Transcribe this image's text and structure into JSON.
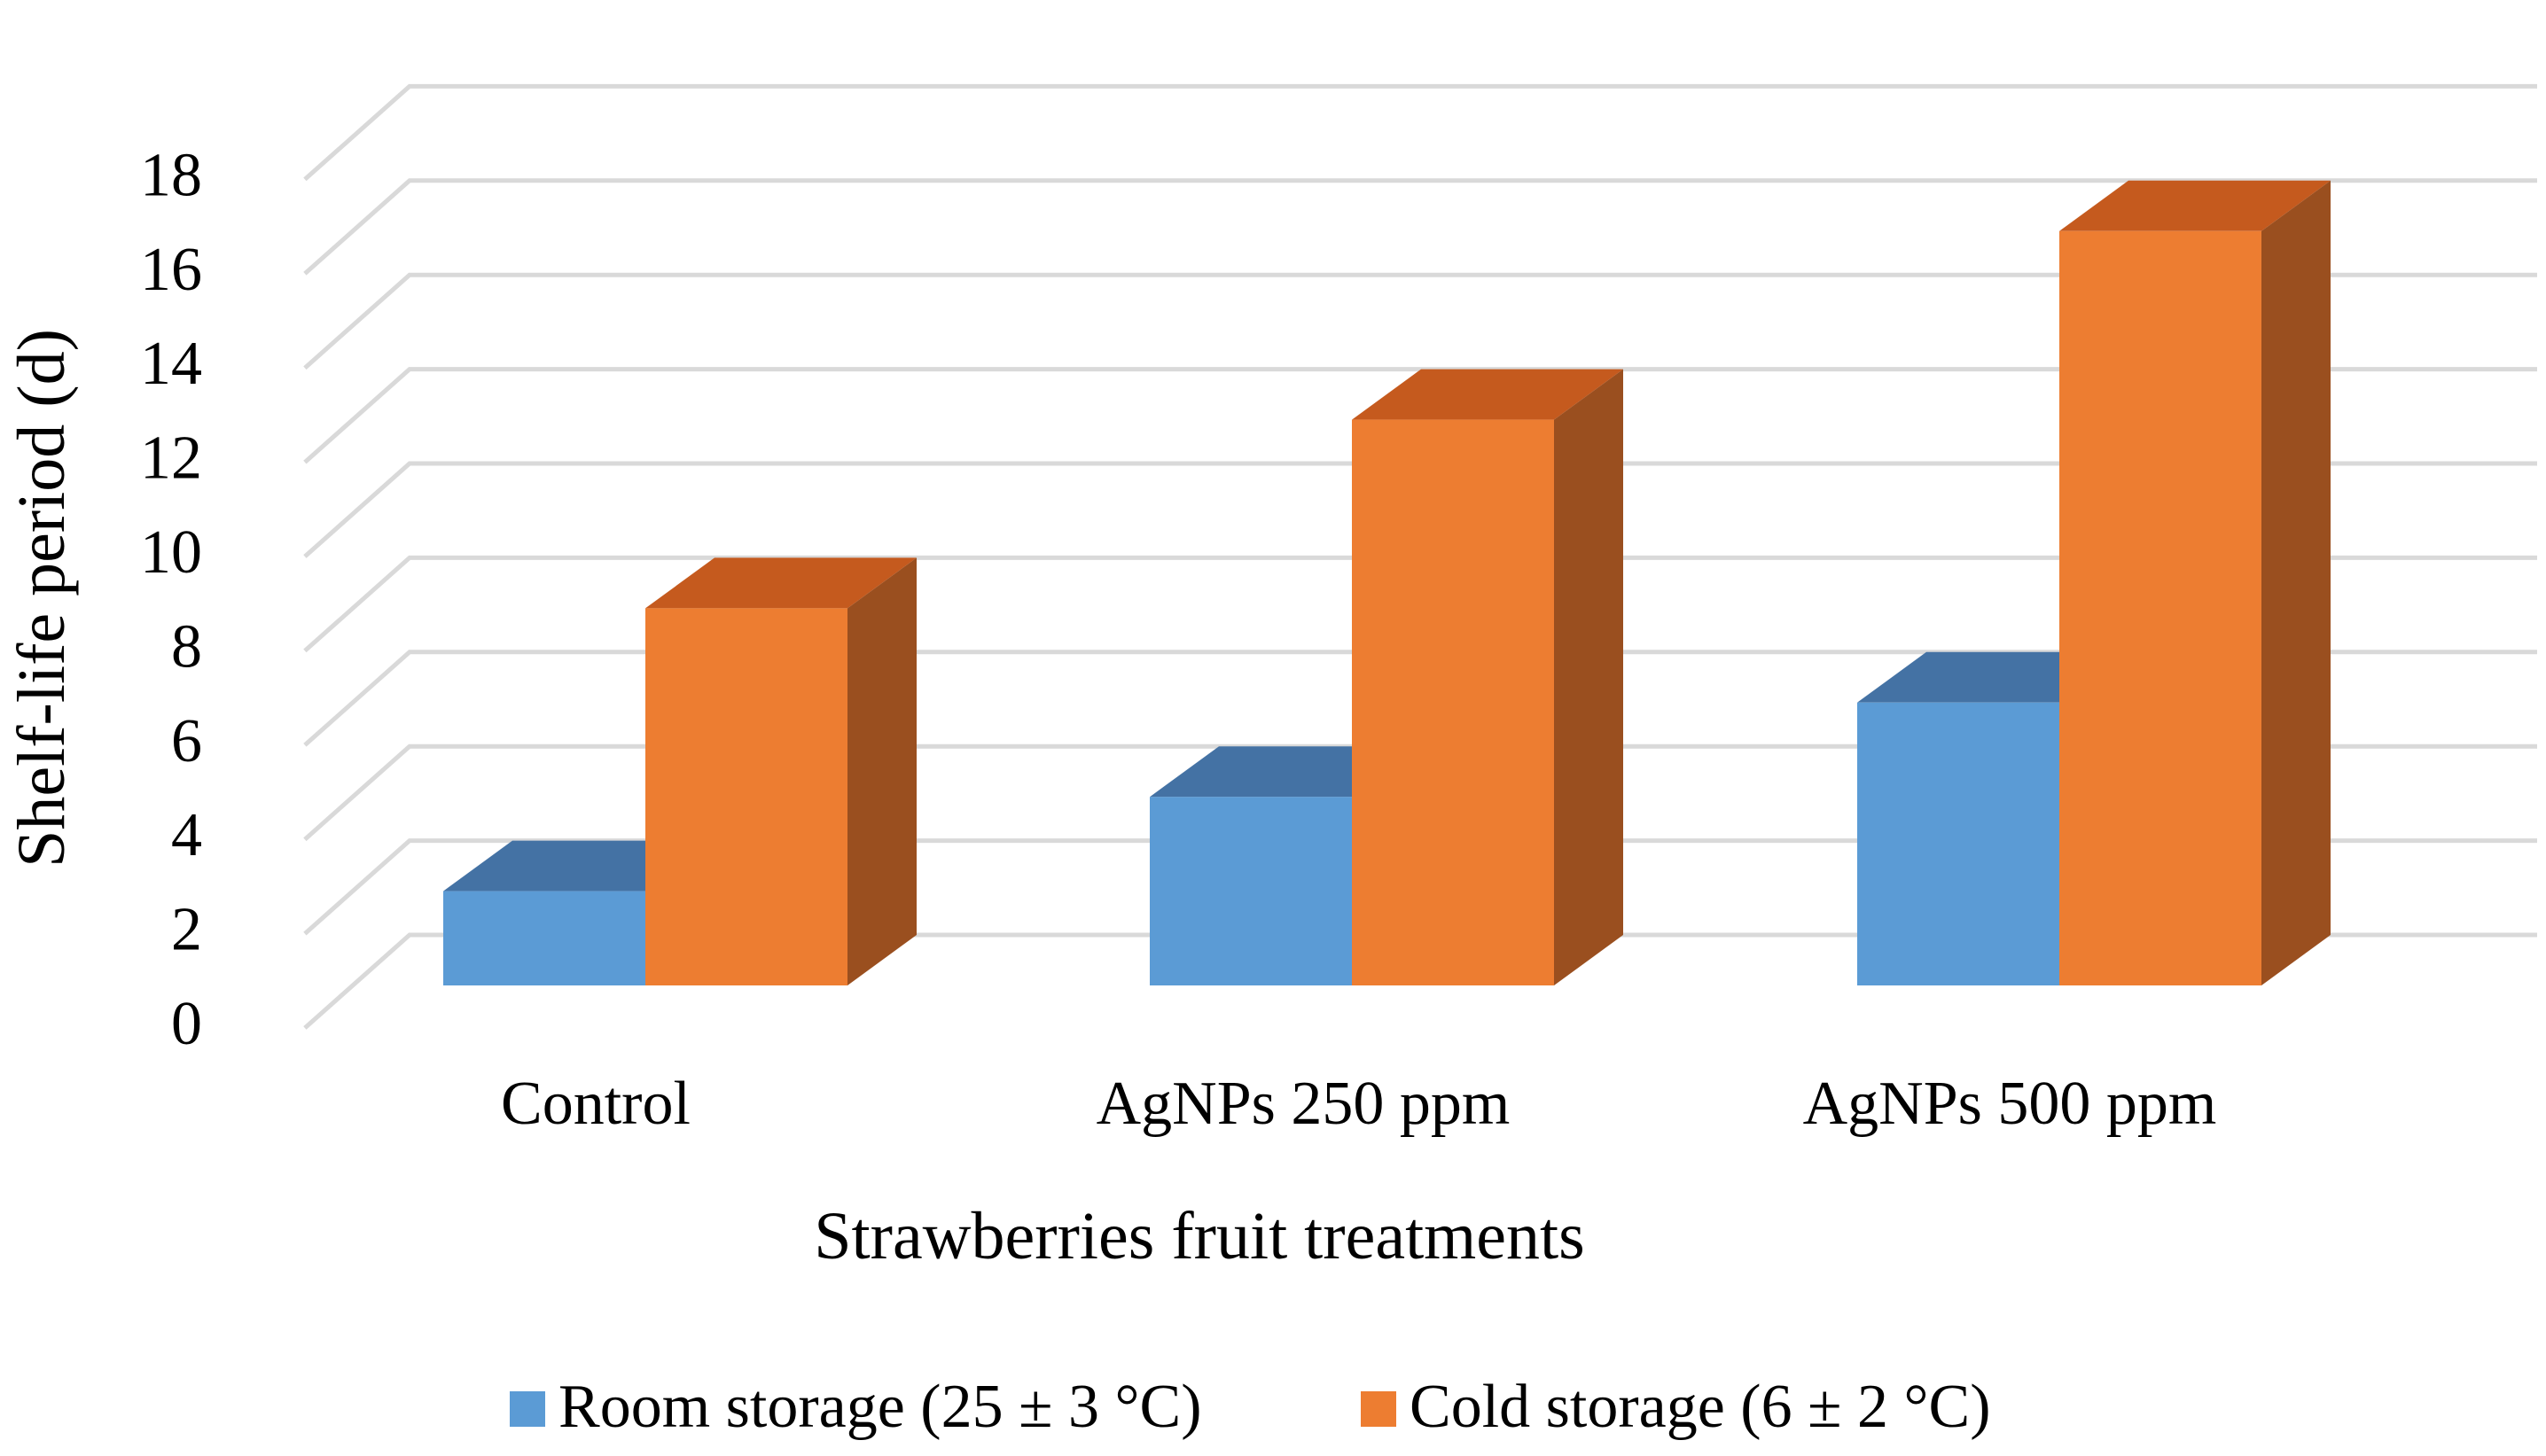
{
  "chart_data": {
    "type": "bar",
    "title": "",
    "xlabel": "Strawberries fruit treatments",
    "ylabel": "Shelf-life period (d)",
    "categories": [
      "Control",
      "AgNPs 250 ppm",
      "AgNPs 500 ppm"
    ],
    "series": [
      {
        "name": "Room storage (25 ± 3 °C)",
        "values": [
          2,
          4,
          6
        ],
        "color": "#5b9bd5",
        "top_color": "#4472a4",
        "side_color": "#41719c"
      },
      {
        "name": "Cold storage (6 ± 2 °C)",
        "values": [
          8,
          12,
          16
        ],
        "color": "#ed7d31",
        "top_color": "#c55a1e",
        "side_color": "#9a4f1f"
      }
    ],
    "ylim": [
      0,
      18
    ],
    "yticks": [
      "0",
      "2",
      "4",
      "6",
      "8",
      "10",
      "12",
      "14",
      "16",
      "18"
    ],
    "grid": true,
    "legend_position": "bottom",
    "style": "3d-clustered-column"
  }
}
